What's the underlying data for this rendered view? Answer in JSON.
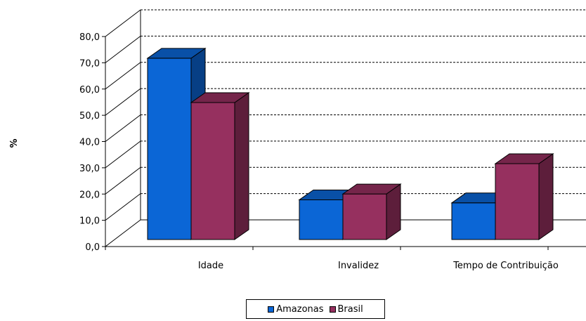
{
  "chart_data": {
    "type": "bar",
    "categories": [
      "Idade",
      "Invalidez",
      "Tempo de Contribuição"
    ],
    "series": [
      {
        "name": "Amazonas",
        "values": [
          71.2,
          15.6,
          14.4
        ],
        "color": "#0b66d6"
      },
      {
        "name": "Brasil",
        "values": [
          53.8,
          17.9,
          29.8
        ],
        "color": "#96305f"
      }
    ],
    "ylabel": "%",
    "ylim": [
      0,
      80
    ],
    "yticks": [
      "0,0",
      "10,0",
      "20,0",
      "30,0",
      "40,0",
      "50,0",
      "60,0",
      "70,0",
      "80,0"
    ],
    "grid": true,
    "legend": "bottom"
  }
}
